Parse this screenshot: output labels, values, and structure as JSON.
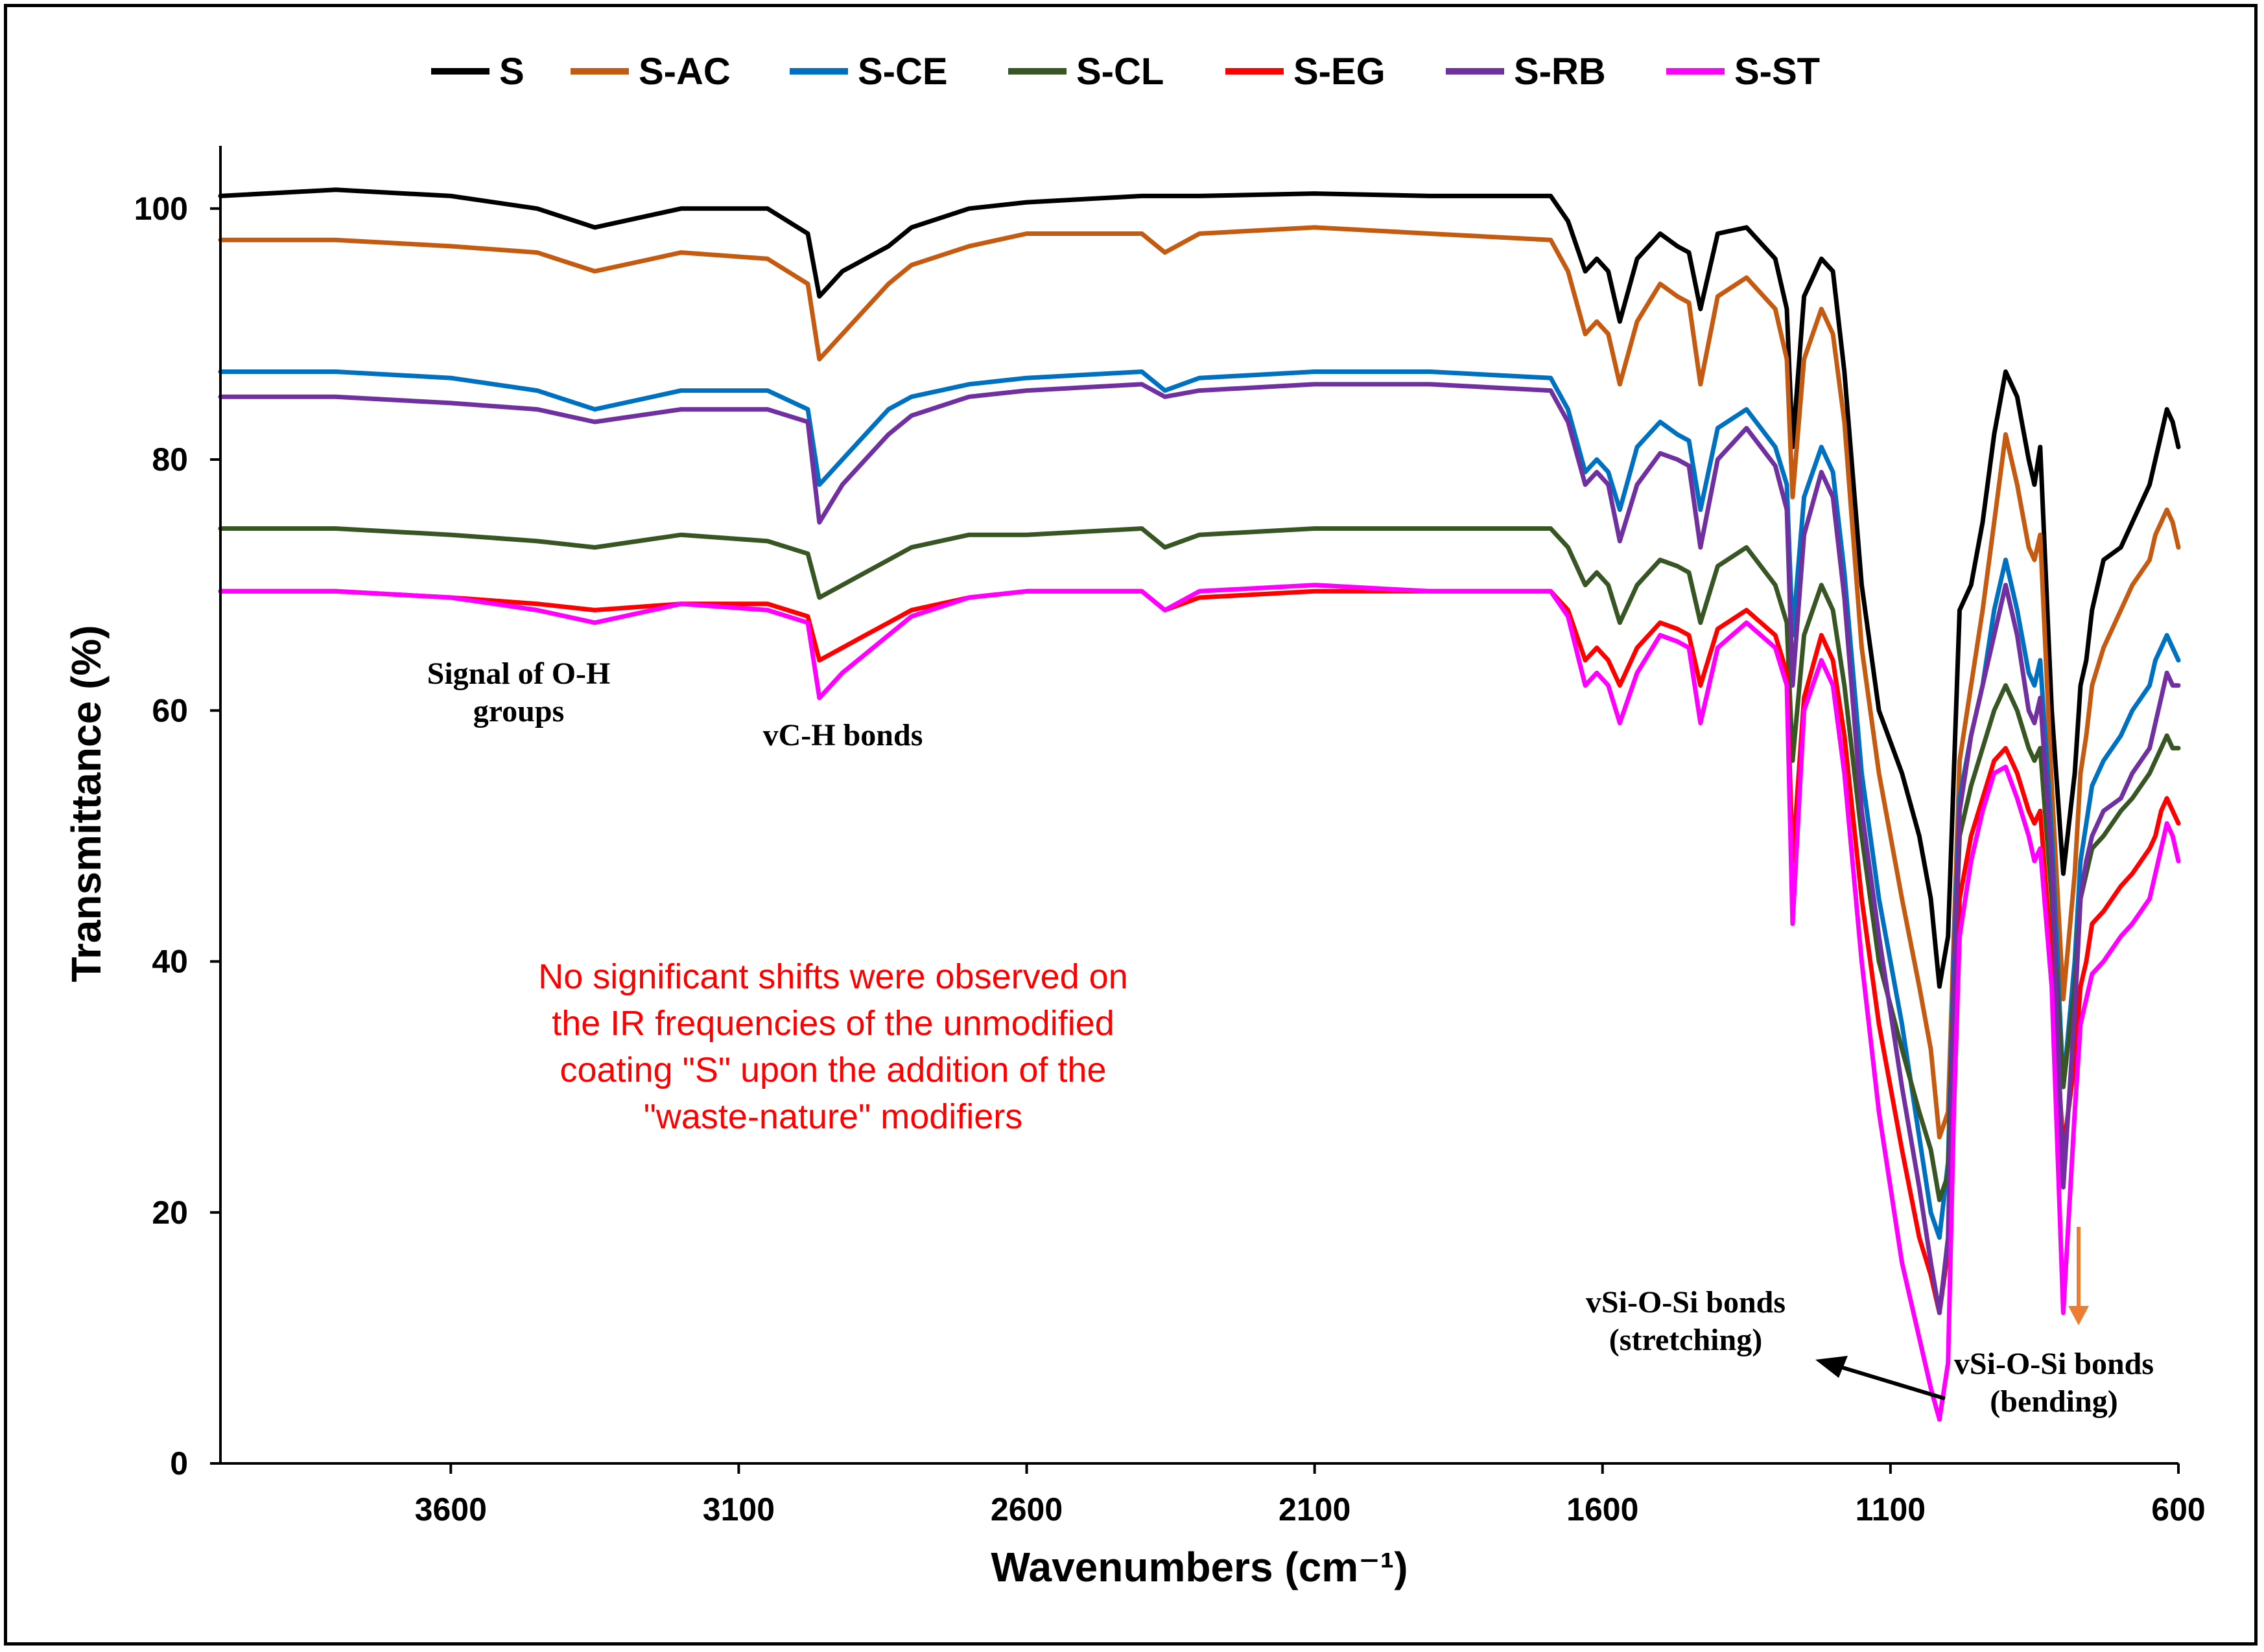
{
  "chart_data": {
    "type": "line",
    "title": "",
    "xlabel": "Wavenumbers (cm⁻¹)",
    "ylabel": "Transmittance (%)",
    "xlim": [
      4000,
      600
    ],
    "ylim": [
      0,
      105
    ],
    "x_reversed": true,
    "xticks": [
      3600,
      3100,
      2600,
      2100,
      1600,
      1100,
      600
    ],
    "xtick_labels": [
      "3600",
      "3100",
      "2600",
      "2100",
      "1600",
      "1100",
      "600"
    ],
    "yticks": [
      0,
      20,
      40,
      60,
      80,
      100
    ],
    "ytick_labels": [
      "0",
      "20",
      "40",
      "60",
      "80",
      "100"
    ],
    "grid": false,
    "legend_position": "top-center",
    "series": [
      {
        "name": "S",
        "color": "#000000",
        "x": [
          4000,
          3800,
          3600,
          3450,
          3350,
          3200,
          3050,
          2980,
          2960,
          2920,
          2880,
          2840,
          2800,
          2700,
          2600,
          2400,
          2360,
          2300,
          2100,
          1900,
          1690,
          1660,
          1630,
          1610,
          1590,
          1570,
          1540,
          1500,
          1470,
          1450,
          1430,
          1400,
          1350,
          1300,
          1280,
          1270,
          1250,
          1220,
          1200,
          1180,
          1150,
          1120,
          1080,
          1050,
          1030,
          1015,
          1000,
          990,
          980,
          960,
          940,
          920,
          900,
          880,
          860,
          850,
          840,
          820,
          800,
          780,
          770,
          760,
          750,
          730,
          700,
          680,
          650,
          640,
          630,
          620,
          610,
          600
        ],
        "y": [
          101,
          101.5,
          101,
          100,
          98.5,
          100,
          100,
          98,
          93,
          95,
          96,
          97,
          98.5,
          100,
          100.5,
          101,
          101,
          101,
          101.2,
          101,
          101,
          99,
          95,
          96,
          95,
          91,
          96,
          98,
          97,
          96.5,
          92,
          98,
          98.5,
          96,
          92,
          81,
          93,
          96,
          95,
          87,
          70,
          60,
          55,
          50,
          45,
          38,
          42,
          55,
          68,
          70,
          75,
          82,
          87,
          85,
          80,
          78,
          81,
          60,
          47,
          55,
          62,
          64,
          68,
          72,
          73,
          75,
          78,
          80,
          82,
          84,
          83,
          81
        ]
      },
      {
        "name": "S-AC",
        "color": "#C55A11",
        "x": [
          4000,
          3800,
          3600,
          3450,
          3350,
          3200,
          3050,
          2980,
          2960,
          2920,
          2880,
          2840,
          2800,
          2700,
          2600,
          2400,
          2360,
          2300,
          2100,
          1900,
          1690,
          1660,
          1630,
          1610,
          1590,
          1570,
          1540,
          1500,
          1470,
          1450,
          1430,
          1400,
          1350,
          1300,
          1280,
          1270,
          1250,
          1220,
          1200,
          1180,
          1150,
          1120,
          1080,
          1050,
          1030,
          1015,
          1000,
          990,
          980,
          960,
          940,
          920,
          900,
          880,
          860,
          850,
          840,
          820,
          800,
          780,
          770,
          760,
          750,
          730,
          700,
          680,
          650,
          640,
          630,
          620,
          610,
          600
        ],
        "y": [
          97.5,
          97.5,
          97,
          96.5,
          95,
          96.5,
          96,
          94,
          88,
          90,
          92,
          94,
          95.5,
          97,
          98,
          98,
          96.5,
          98,
          98.5,
          98,
          97.5,
          95,
          90,
          91,
          90,
          86,
          91,
          94,
          93,
          92.5,
          86,
          93,
          94.5,
          92,
          88,
          77,
          88,
          92,
          90,
          83,
          65,
          55,
          45,
          38,
          33,
          26,
          28,
          42,
          56,
          62,
          68,
          75,
          82,
          78,
          73,
          72,
          74,
          54,
          37,
          47,
          55,
          58,
          62,
          65,
          68,
          70,
          72,
          74,
          75,
          76,
          75,
          73
        ]
      },
      {
        "name": "S-CE",
        "color": "#0070C0",
        "x": [
          4000,
          3800,
          3600,
          3450,
          3350,
          3200,
          3050,
          2980,
          2960,
          2920,
          2880,
          2840,
          2800,
          2700,
          2600,
          2400,
          2360,
          2300,
          2100,
          1900,
          1690,
          1660,
          1630,
          1610,
          1590,
          1570,
          1540,
          1500,
          1470,
          1450,
          1430,
          1400,
          1350,
          1300,
          1280,
          1270,
          1250,
          1220,
          1200,
          1180,
          1150,
          1120,
          1080,
          1050,
          1030,
          1015,
          1000,
          990,
          980,
          960,
          940,
          920,
          900,
          880,
          860,
          850,
          840,
          820,
          800,
          780,
          770,
          760,
          750,
          730,
          700,
          680,
          650,
          640,
          630,
          620,
          610,
          600
        ],
        "y": [
          87,
          87,
          86.5,
          85.5,
          84,
          85.5,
          85.5,
          84,
          78,
          80,
          82,
          84,
          85,
          86,
          86.5,
          87,
          85.5,
          86.5,
          87,
          87,
          86.5,
          84,
          79,
          80,
          79,
          76,
          81,
          83,
          82,
          81.5,
          76,
          82.5,
          84,
          81,
          78,
          66,
          77,
          81,
          79,
          71,
          55,
          45,
          35,
          26,
          20,
          18,
          24,
          40,
          53,
          58,
          62,
          68,
          72,
          68,
          63,
          62,
          64,
          50,
          30,
          40,
          48,
          51,
          54,
          56,
          58,
          60,
          62,
          64,
          65,
          66,
          65,
          64
        ]
      },
      {
        "name": "S-CL",
        "color": "#375623",
        "x": [
          4000,
          3800,
          3600,
          3450,
          3350,
          3200,
          3050,
          2980,
          2960,
          2920,
          2880,
          2840,
          2800,
          2700,
          2600,
          2400,
          2360,
          2300,
          2100,
          1900,
          1690,
          1660,
          1630,
          1610,
          1590,
          1570,
          1540,
          1500,
          1470,
          1450,
          1430,
          1400,
          1350,
          1300,
          1280,
          1270,
          1250,
          1220,
          1200,
          1180,
          1150,
          1120,
          1080,
          1050,
          1030,
          1015,
          1000,
          990,
          980,
          960,
          940,
          920,
          900,
          880,
          860,
          850,
          840,
          820,
          800,
          780,
          770,
          760,
          750,
          730,
          700,
          680,
          650,
          640,
          630,
          620,
          610,
          600
        ],
        "y": [
          74.5,
          74.5,
          74,
          73.5,
          73,
          74,
          73.5,
          72.5,
          69,
          70,
          71,
          72,
          73,
          74,
          74,
          74.5,
          73,
          74,
          74.5,
          74.5,
          74.5,
          73,
          70,
          71,
          70,
          67,
          70,
          72,
          71.5,
          71,
          67,
          71.5,
          73,
          70,
          67,
          56,
          66,
          70,
          68,
          62,
          50,
          40,
          33,
          28,
          25,
          21,
          23,
          38,
          50,
          54,
          57,
          60,
          62,
          60,
          57,
          56,
          57,
          45,
          30,
          38,
          45,
          47,
          49,
          50,
          52,
          53,
          55,
          56,
          57,
          58,
          57,
          57
        ]
      },
      {
        "name": "S-EG",
        "color": "#FF0000",
        "x": [
          4000,
          3800,
          3600,
          3450,
          3350,
          3200,
          3050,
          2980,
          2960,
          2920,
          2880,
          2840,
          2800,
          2700,
          2600,
          2400,
          2360,
          2300,
          2100,
          1900,
          1690,
          1660,
          1630,
          1610,
          1590,
          1570,
          1540,
          1500,
          1470,
          1450,
          1430,
          1400,
          1350,
          1300,
          1280,
          1270,
          1250,
          1220,
          1200,
          1180,
          1150,
          1120,
          1080,
          1050,
          1030,
          1015,
          1000,
          990,
          980,
          960,
          940,
          920,
          900,
          880,
          860,
          850,
          840,
          820,
          800,
          780,
          770,
          760,
          750,
          730,
          700,
          680,
          650,
          640,
          630,
          620,
          610,
          600
        ],
        "y": [
          69.5,
          69.5,
          69,
          68.5,
          68,
          68.5,
          68.5,
          67.5,
          64,
          65,
          66,
          67,
          68,
          69,
          69.5,
          69.5,
          68,
          69,
          69.5,
          69.5,
          69.5,
          68,
          64,
          65,
          64,
          62,
          65,
          67,
          66.5,
          66,
          62,
          66.5,
          68,
          66,
          63,
          48,
          61,
          66,
          64,
          58,
          45,
          35,
          25,
          18,
          15,
          12,
          17,
          32,
          45,
          50,
          53,
          56,
          57,
          55,
          52,
          51,
          52,
          40,
          25,
          32,
          38,
          40,
          43,
          44,
          46,
          47,
          49,
          50,
          52,
          53,
          52,
          51
        ]
      },
      {
        "name": "S-RB",
        "color": "#7030A0",
        "x": [
          4000,
          3800,
          3600,
          3450,
          3350,
          3200,
          3050,
          2980,
          2960,
          2920,
          2880,
          2840,
          2800,
          2700,
          2600,
          2400,
          2360,
          2300,
          2100,
          1900,
          1690,
          1660,
          1630,
          1610,
          1590,
          1570,
          1540,
          1500,
          1470,
          1450,
          1430,
          1400,
          1350,
          1300,
          1280,
          1270,
          1250,
          1220,
          1200,
          1180,
          1150,
          1120,
          1080,
          1050,
          1030,
          1015,
          1000,
          990,
          980,
          960,
          940,
          920,
          900,
          880,
          860,
          850,
          840,
          820,
          800,
          780,
          770,
          760,
          750,
          730,
          700,
          680,
          650,
          640,
          630,
          620,
          610,
          600
        ],
        "y": [
          85,
          85,
          84.5,
          84,
          83,
          84,
          84,
          83,
          75,
          78,
          80,
          82,
          83.5,
          85,
          85.5,
          86,
          85,
          85.5,
          86,
          86,
          85.5,
          83,
          78,
          79,
          78,
          73.5,
          78,
          80.5,
          80,
          79.5,
          73,
          80,
          82.5,
          79.5,
          76,
          62,
          74,
          79,
          77,
          69,
          52,
          42,
          30,
          22,
          16,
          12,
          18,
          38,
          52,
          58,
          62,
          66,
          70,
          66,
          60,
          59,
          61,
          48,
          22,
          36,
          45,
          48,
          50,
          52,
          53,
          55,
          57,
          59,
          61,
          63,
          62,
          62
        ]
      },
      {
        "name": "S-ST",
        "color": "#FF00FF",
        "x": [
          4000,
          3800,
          3600,
          3450,
          3350,
          3200,
          3050,
          2980,
          2960,
          2920,
          2880,
          2840,
          2800,
          2700,
          2600,
          2400,
          2360,
          2300,
          2100,
          1900,
          1690,
          1660,
          1630,
          1610,
          1590,
          1570,
          1540,
          1500,
          1470,
          1450,
          1430,
          1400,
          1350,
          1300,
          1280,
          1270,
          1250,
          1220,
          1200,
          1180,
          1150,
          1120,
          1080,
          1050,
          1030,
          1015,
          1000,
          990,
          980,
          960,
          940,
          920,
          900,
          880,
          860,
          850,
          840,
          820,
          800,
          780,
          770,
          760,
          750,
          730,
          700,
          680,
          650,
          640,
          630,
          620,
          610,
          600
        ],
        "y": [
          69.5,
          69.5,
          69,
          68,
          67,
          68.5,
          68,
          67,
          61,
          63,
          64.5,
          66,
          67.5,
          69,
          69.5,
          69.5,
          68,
          69.5,
          70,
          69.5,
          69.5,
          67.5,
          62,
          63,
          62,
          59,
          63,
          66,
          65.5,
          65,
          59,
          65,
          67,
          65,
          62,
          43,
          60,
          64,
          62,
          55,
          40,
          28,
          16,
          10,
          6,
          3.5,
          8,
          28,
          42,
          48,
          52,
          55,
          55.5,
          53,
          50,
          48,
          49,
          38,
          12,
          28,
          35,
          37,
          39,
          40,
          42,
          43,
          45,
          47,
          49,
          51,
          50,
          48
        ]
      }
    ],
    "annotations": [
      {
        "lines": [
          "Signal of O-H",
          "groups"
        ],
        "color": "#000000"
      },
      {
        "lines": [
          "vC-H bonds"
        ],
        "color": "#000000"
      },
      {
        "lines": [
          "vSi-O-Si bonds",
          "(stretching)"
        ],
        "color": "#000000"
      },
      {
        "lines": [
          "vSi-O-Si bonds",
          "(bending)"
        ],
        "color": "#000000"
      },
      {
        "lines": [
          "No significant shifts were observed on",
          "the IR frequencies of the unmodified",
          "coating \"S\" upon the addition of the",
          "\"waste-nature\" modifiers"
        ],
        "color": "#FF0000"
      }
    ],
    "arrow_colors": {
      "stretching": "#000000",
      "bending": "#ED7D31"
    }
  }
}
